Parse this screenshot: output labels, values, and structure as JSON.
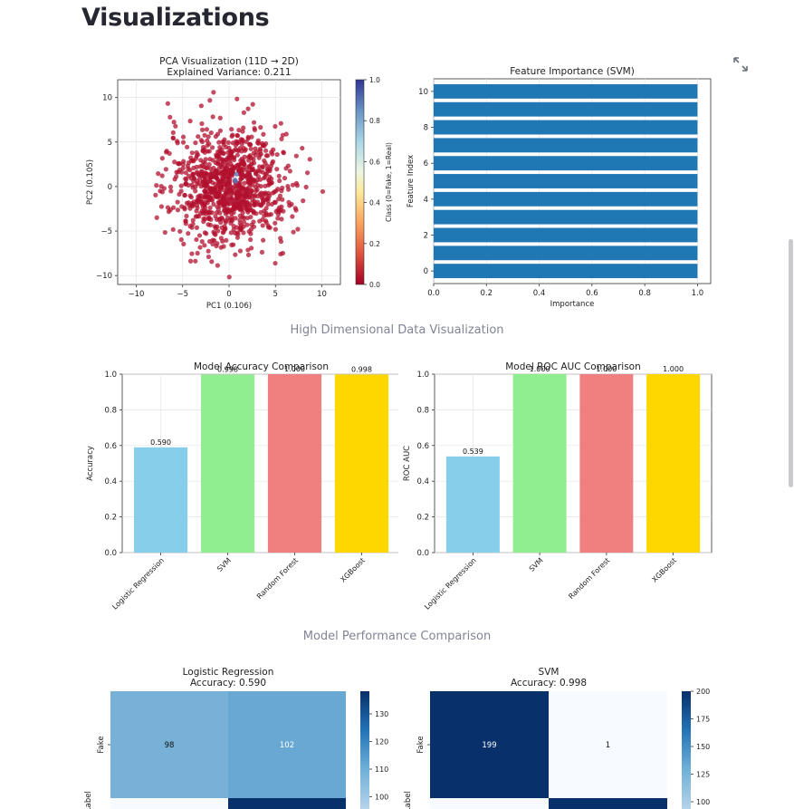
{
  "page": {
    "title": "Visualizations",
    "captions": [
      "High Dimensional Data Visualization",
      "Model Performance Comparison"
    ]
  },
  "colors": {
    "accuracy_bars": [
      "#87ceeb",
      "#90ee90",
      "#f08080",
      "#ffd700"
    ],
    "importance_bar": "#1f77b4",
    "scatter_fake": "#b2102e",
    "scatter_real": "#5d70b1",
    "cm_dark": "#08306b",
    "cm_light": "#f7fbff"
  },
  "chart_data": [
    {
      "type": "scatter",
      "title": "PCA Visualization (11D → 2D)",
      "subtitle": "Explained Variance: 0.211",
      "xlabel": "PC1 (0.106)",
      "ylabel": "PC2 (0.105)",
      "xlim": [
        -12,
        12
      ],
      "ylim": [
        -11,
        12
      ],
      "xticks": [
        -10,
        -5,
        0,
        5,
        10
      ],
      "yticks": [
        -10,
        -5,
        0,
        5,
        10
      ],
      "grid": true,
      "colorbar": {
        "label": "Class (0=Fake, 1=Real)",
        "ticks": [
          "0.0",
          "0.2",
          "0.4",
          "0.6",
          "0.8",
          "1.0"
        ]
      },
      "points_count": 1000
    },
    {
      "type": "bar",
      "orientation": "horizontal",
      "title": "Feature Importance (SVM)",
      "xlabel": "Importance",
      "ylabel": "Feature Index",
      "categories": [
        0,
        1,
        2,
        3,
        4,
        5,
        6,
        7,
        8,
        9,
        10
      ],
      "values": [
        1.0,
        1.0,
        1.0,
        1.0,
        1.0,
        1.0,
        1.0,
        1.0,
        1.0,
        1.0,
        1.0
      ],
      "xlim": [
        0,
        1.05
      ],
      "xticks": [
        "0.0",
        "0.2",
        "0.4",
        "0.6",
        "0.8",
        "1.0"
      ],
      "yticks": [
        "0",
        "2",
        "4",
        "6",
        "8",
        "10"
      ],
      "grid": true
    },
    {
      "type": "bar",
      "title": "Model Accuracy Comparison",
      "ylabel": "Accuracy",
      "categories": [
        "Logistic Regression",
        "SVM",
        "Random Forest",
        "XGBoost"
      ],
      "values": [
        0.59,
        0.998,
        1.0,
        0.998
      ],
      "labels": [
        "0.590",
        "0.998",
        "1.000",
        "0.998"
      ],
      "ylim": [
        0,
        1.0
      ],
      "yticks": [
        "0.0",
        "0.2",
        "0.4",
        "0.6",
        "0.8",
        "1.0"
      ],
      "grid": true
    },
    {
      "type": "bar",
      "title": "Model ROC AUC Comparison",
      "ylabel": "ROC AUC",
      "categories": [
        "Logistic Regression",
        "SVM",
        "Random Forest",
        "XGBoost"
      ],
      "values": [
        0.539,
        1.0,
        1.0,
        1.0
      ],
      "labels": [
        "0.539",
        "1.000",
        "1.000",
        "1.000"
      ],
      "ylim": [
        0,
        1.0
      ],
      "yticks": [
        "0.0",
        "0.2",
        "0.4",
        "0.6",
        "0.8",
        "1.0"
      ],
      "grid": true
    },
    {
      "type": "heatmap",
      "title": "Logistic Regression",
      "subtitle": "Accuracy: 0.590",
      "ylabel": "True Label",
      "row_labels": [
        "Fake"
      ],
      "cells": [
        [
          98,
          102
        ]
      ],
      "bottom_row_shades": [
        "#f7fbff",
        "#08306b"
      ],
      "colorbar_ticks": [
        "130",
        "120",
        "110",
        "100"
      ]
    },
    {
      "type": "heatmap",
      "title": "SVM",
      "subtitle": "Accuracy: 0.998",
      "ylabel": "True Label",
      "row_labels": [
        "Fake"
      ],
      "cells": [
        [
          199,
          1
        ]
      ],
      "bottom_row_shades": [
        "#f7fbff",
        "#08306b"
      ],
      "colorbar_ticks": [
        "200",
        "175",
        "150",
        "125",
        "100"
      ]
    }
  ]
}
